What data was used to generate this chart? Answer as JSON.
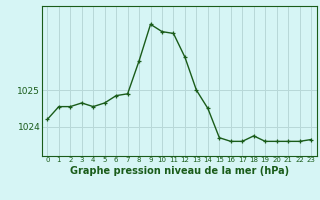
{
  "x": [
    0,
    1,
    2,
    3,
    4,
    5,
    6,
    7,
    8,
    9,
    10,
    11,
    12,
    13,
    14,
    15,
    16,
    17,
    18,
    19,
    20,
    21,
    22,
    23
  ],
  "y": [
    1024.2,
    1024.55,
    1024.55,
    1024.65,
    1024.55,
    1024.65,
    1024.85,
    1024.9,
    1025.8,
    1026.8,
    1026.6,
    1026.55,
    1025.9,
    1025.0,
    1024.5,
    1023.7,
    1023.6,
    1023.6,
    1023.75,
    1023.6,
    1023.6,
    1023.6,
    1023.6,
    1023.65
  ],
  "line_color": "#1a5c1a",
  "marker": "+",
  "marker_size": 3,
  "linewidth": 1.0,
  "bg_color": "#d6f5f5",
  "grid_color": "#b8d8d8",
  "axis_color": "#1a5c1a",
  "xlabel": "Graphe pression niveau de la mer (hPa)",
  "xlabel_fontsize": 7,
  "ylabel_fontsize": 6.5,
  "yticks": [
    1024,
    1025
  ],
  "ylim": [
    1023.2,
    1027.3
  ],
  "xlim": [
    -0.5,
    23.5
  ],
  "xtick_labels": [
    "0",
    "1",
    "2",
    "3",
    "4",
    "5",
    "6",
    "7",
    "8",
    "9",
    "10",
    "11",
    "12",
    "13",
    "14",
    "15",
    "16",
    "17",
    "18",
    "19",
    "20",
    "21",
    "22",
    "23"
  ]
}
